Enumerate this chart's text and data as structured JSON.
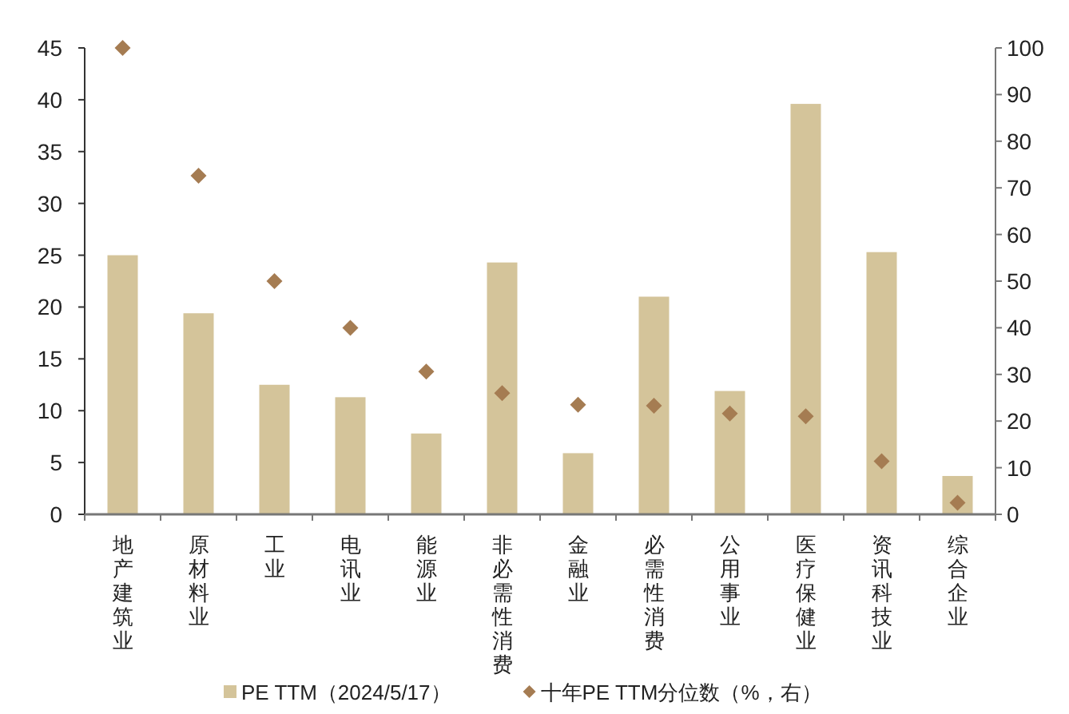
{
  "chart_data": {
    "type": "bar",
    "categories": [
      "地产建筑业",
      "原材料业",
      "工业",
      "电讯业",
      "能源业",
      "非必需性消费",
      "金融业",
      "必需性消费",
      "公用事业",
      "医疗保健业",
      "资讯科技业",
      "综合企业"
    ],
    "series": [
      {
        "name": "PE TTM（2024/5/17）",
        "type": "bar",
        "color": "#d4c49a",
        "values": [
          25.0,
          19.4,
          12.5,
          11.3,
          7.8,
          24.3,
          5.9,
          21.0,
          11.9,
          39.6,
          25.3,
          3.7
        ]
      },
      {
        "name": "十年PE TTM分位数（%，右）",
        "type": "scatter",
        "axis": "y2",
        "marker": "diamond",
        "color": "#a57c52",
        "values": [
          100,
          72.6,
          50,
          40,
          30.6,
          26,
          23.5,
          23.3,
          21.6,
          21,
          11.4,
          2.5
        ]
      }
    ],
    "ylim": [
      0,
      45
    ],
    "yticks": [
      0,
      5,
      10,
      15,
      20,
      25,
      30,
      35,
      40,
      45
    ],
    "y2lim": [
      0,
      100
    ],
    "y2ticks": [
      0,
      10,
      20,
      30,
      40,
      50,
      60,
      70,
      80,
      90,
      100
    ],
    "grid": false,
    "legend": "bottom"
  }
}
